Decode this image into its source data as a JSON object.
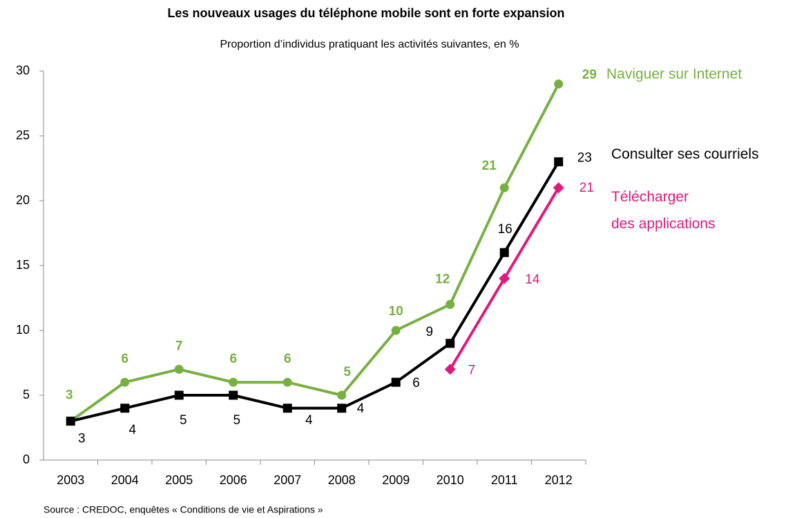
{
  "chart_data": {
    "type": "line",
    "title": "Les nouveaux usages du téléphone mobile sont en forte expansion",
    "subtitle": "Proportion d’individus pratiquant les activités suivantes, en %",
    "source": "Source : CREDOC, enquêtes « Conditions de vie et Aspirations »",
    "categories": [
      "2003",
      "2004",
      "2005",
      "2006",
      "2007",
      "2008",
      "2009",
      "2010",
      "2011",
      "2012"
    ],
    "series": [
      {
        "name": "Naviguer sur Internet",
        "color": "#77b041",
        "values": [
          3,
          6,
          7,
          6,
          6,
          5,
          10,
          12,
          21,
          29
        ]
      },
      {
        "name": "Consulter ses courriels",
        "color": "#000000",
        "values": [
          3,
          4,
          5,
          5,
          4,
          4,
          6,
          9,
          16,
          23
        ]
      },
      {
        "name": "Télécharger\ndes applications",
        "color": "#e0197d",
        "values": [
          null,
          null,
          null,
          null,
          null,
          null,
          null,
          7,
          14,
          21
        ]
      }
    ],
    "ylim": [
      0,
      30
    ],
    "yticks": [
      0,
      5,
      10,
      15,
      20,
      25,
      30
    ],
    "grid": false
  }
}
